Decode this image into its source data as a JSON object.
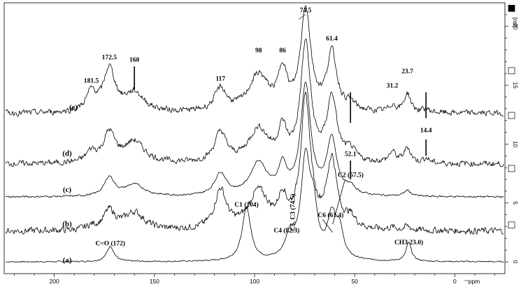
{
  "chart_data": {
    "type": "line",
    "title": "",
    "xlabel": "ppm",
    "ylabel": "[rel]",
    "xlim": [
      225,
      -25
    ],
    "ylim": [
      -1,
      22
    ],
    "x_reversed": true,
    "x_ticks": [
      200,
      150,
      100,
      50,
      0
    ],
    "y_ticks": [
      0,
      5,
      10,
      15,
      20
    ],
    "grid": false,
    "legend": "none",
    "series": [
      {
        "name": "(a)",
        "baseline": 0,
        "peaks": [
          {
            "x": 172,
            "height": 1.3,
            "width": 2.2
          },
          {
            "x": 104,
            "height": 4.5,
            "width": 2.6
          },
          {
            "x": 82.3,
            "height": 1.9,
            "width": 2.8
          },
          {
            "x": 74.5,
            "height": 8.4,
            "width": 2.8
          },
          {
            "x": 70.5,
            "height": 3.5,
            "width": 2.2
          },
          {
            "x": 61.4,
            "height": 3.6,
            "width": 2.8
          },
          {
            "x": 57.5,
            "height": 2.1,
            "width": 2.2
          },
          {
            "x": 23,
            "height": 1.6,
            "width": 1.6
          }
        ],
        "noise": 0.05
      },
      {
        "name": "(b)",
        "baseline": 2.6,
        "peaks": [
          {
            "x": 181.5,
            "height": 0.3,
            "width": 3
          },
          {
            "x": 172.5,
            "height": 1.6,
            "width": 3.5
          },
          {
            "x": 160,
            "height": 1.5,
            "width": 6
          },
          {
            "x": 117,
            "height": 3.3,
            "width": 3.5
          },
          {
            "x": 98,
            "height": 3.2,
            "width": 6
          },
          {
            "x": 86,
            "height": 2.3,
            "width": 2.5
          },
          {
            "x": 74.5,
            "height": 10.9,
            "width": 3
          },
          {
            "x": 61.4,
            "height": 5.8,
            "width": 3
          },
          {
            "x": 52.1,
            "height": 0.9,
            "width": 3
          },
          {
            "x": 31.2,
            "height": 0.2,
            "width": 2
          },
          {
            "x": 23.7,
            "height": 0.3,
            "width": 2
          }
        ],
        "noise": 0.25
      },
      {
        "name": "(c)",
        "baseline": 5.5,
        "peaks": [
          {
            "x": 172.5,
            "height": 1.6,
            "width": 3
          },
          {
            "x": 160,
            "height": 1.0,
            "width": 6
          },
          {
            "x": 117,
            "height": 1.9,
            "width": 3.5
          },
          {
            "x": 98,
            "height": 2.8,
            "width": 5
          },
          {
            "x": 86,
            "height": 2.3,
            "width": 2.5
          },
          {
            "x": 74.5,
            "height": 9.3,
            "width": 3
          },
          {
            "x": 61.4,
            "height": 4.7,
            "width": 3
          },
          {
            "x": 52.1,
            "height": 0.6,
            "width": 3
          },
          {
            "x": 23.7,
            "height": 0.5,
            "width": 2
          }
        ],
        "noise": 0.07
      },
      {
        "name": "(d)",
        "baseline": 8.3,
        "peaks": [
          {
            "x": 181.5,
            "height": 0.9,
            "width": 3
          },
          {
            "x": 172.5,
            "height": 2.5,
            "width": 3.5
          },
          {
            "x": 160,
            "height": 1.8,
            "width": 6
          },
          {
            "x": 117,
            "height": 2.5,
            "width": 3.5
          },
          {
            "x": 98,
            "height": 2.8,
            "width": 6
          },
          {
            "x": 86,
            "height": 2.5,
            "width": 2.5
          },
          {
            "x": 74.5,
            "height": 10.0,
            "width": 3
          },
          {
            "x": 61.4,
            "height": 5.4,
            "width": 3
          },
          {
            "x": 52.1,
            "height": 0.9,
            "width": 3
          },
          {
            "x": 31.2,
            "height": 0.9,
            "width": 2
          },
          {
            "x": 23.7,
            "height": 1.3,
            "width": 2
          },
          {
            "x": 14.4,
            "height": 0.4,
            "width": 2
          }
        ],
        "noise": 0.22
      },
      {
        "name": "(e)",
        "baseline": 12.6,
        "peaks": [
          {
            "x": 181.5,
            "height": 1.6,
            "width": 3
          },
          {
            "x": 172.5,
            "height": 3.6,
            "width": 3.5
          },
          {
            "x": 160,
            "height": 1.6,
            "width": 6
          },
          {
            "x": 117,
            "height": 1.9,
            "width": 3.5
          },
          {
            "x": 98,
            "height": 3.1,
            "width": 6
          },
          {
            "x": 86,
            "height": 3.3,
            "width": 2.5
          },
          {
            "x": 74.5,
            "height": 8.7,
            "width": 3
          },
          {
            "x": 61.4,
            "height": 4.9,
            "width": 3
          },
          {
            "x": 52.1,
            "height": 0.6,
            "width": 3
          },
          {
            "x": 31.2,
            "height": 0.6,
            "width": 2
          },
          {
            "x": 23.7,
            "height": 1.6,
            "width": 2
          },
          {
            "x": 14.4,
            "height": 0.3,
            "width": 2
          }
        ],
        "noise": 0.22
      }
    ],
    "annotations": [
      {
        "text": "C=O (172)",
        "x": 172,
        "y": 1.4
      },
      {
        "text": "C1 (104)",
        "x": 104,
        "y": 4.7
      },
      {
        "text": "C4 (82.3)",
        "x": 84,
        "y": 2.5
      },
      {
        "text": "C5, C3 (74.5)",
        "x": 80,
        "y": 4.2,
        "rotated": true
      },
      {
        "text": "C6 (61.4)",
        "x": 62,
        "y": 3.8
      },
      {
        "text": "C2 (57.5)",
        "x": 52,
        "y": 7.2
      },
      {
        "text": "CH3 23.0)",
        "x": 23,
        "y": 1.5
      },
      {
        "text": "181.5",
        "x": 181.5,
        "y": 15.2
      },
      {
        "text": "172.5",
        "x": 172.5,
        "y": 17.2
      },
      {
        "text": "160",
        "x": 160,
        "y": 17.0
      },
      {
        "text": "117",
        "x": 117,
        "y": 15.4
      },
      {
        "text": "98",
        "x": 98,
        "y": 17.8
      },
      {
        "text": "86",
        "x": 86,
        "y": 17.8
      },
      {
        "text": "74.5",
        "x": 74.5,
        "y": 21.2
      },
      {
        "text": "61.4",
        "x": 61.4,
        "y": 18.8
      },
      {
        "text": "31.2",
        "x": 31.2,
        "y": 14.8
      },
      {
        "text": "23.7",
        "x": 23.7,
        "y": 16.0
      },
      {
        "text": "52.1",
        "x": 52.1,
        "y": 9.0
      },
      {
        "text": "14.4",
        "x": 14.4,
        "y": 11.0
      }
    ],
    "trace_labels": [
      "(a)",
      "(b)",
      "(c)",
      "(d)",
      "(e)"
    ]
  }
}
